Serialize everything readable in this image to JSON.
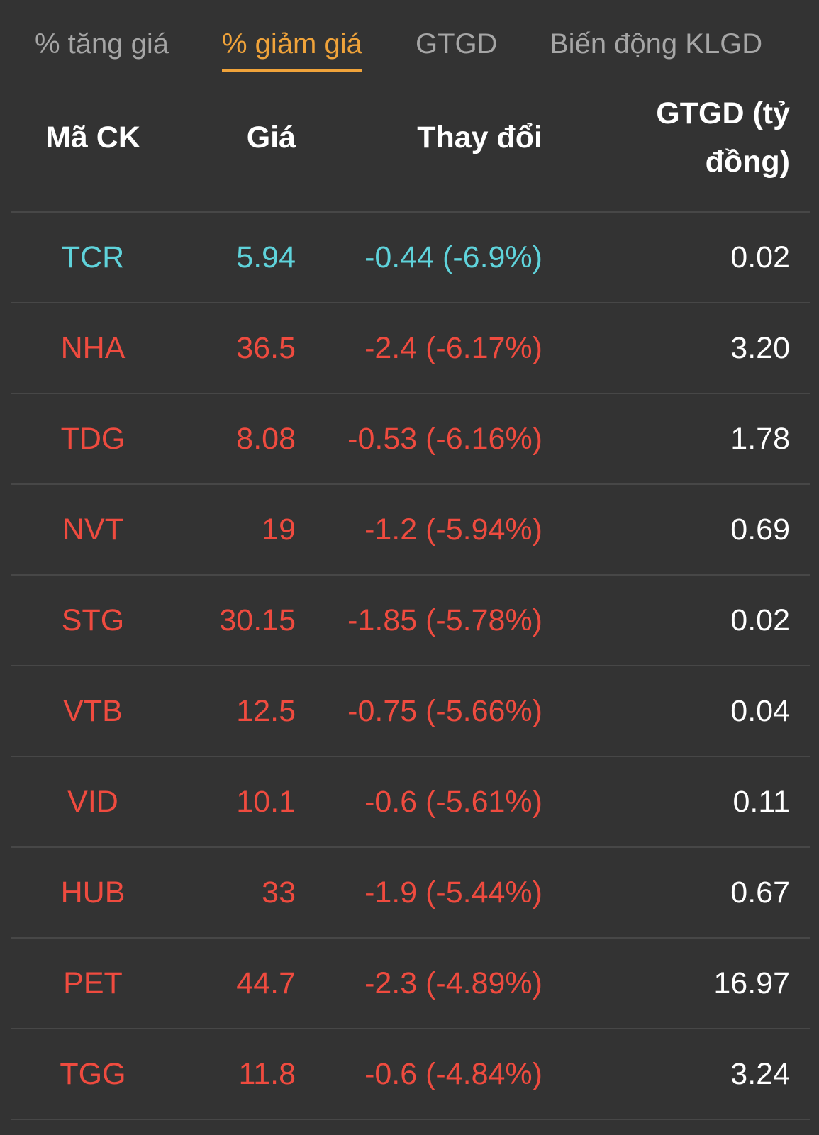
{
  "tabs": [
    {
      "label": "% tăng giá",
      "active": false
    },
    {
      "label": "% giảm giá",
      "active": true
    },
    {
      "label": "GTGD",
      "active": false
    },
    {
      "label": "Biến động KLGD",
      "active": false
    }
  ],
  "table": {
    "headers": {
      "symbol": "Mã CK",
      "price": "Giá",
      "change": "Thay đổi",
      "value_line1": "GTGD (tỷ",
      "value_line2": "đồng)"
    },
    "rows": [
      {
        "symbol": "TCR",
        "price": "5.94",
        "change": "-0.44 (-6.9%)",
        "value": "0.02",
        "status": "floor"
      },
      {
        "symbol": "NHA",
        "price": "36.5",
        "change": "-2.4 (-6.17%)",
        "value": "3.20",
        "status": "down"
      },
      {
        "symbol": "TDG",
        "price": "8.08",
        "change": "-0.53 (-6.16%)",
        "value": "1.78",
        "status": "down"
      },
      {
        "symbol": "NVT",
        "price": "19",
        "change": "-1.2 (-5.94%)",
        "value": "0.69",
        "status": "down"
      },
      {
        "symbol": "STG",
        "price": "30.15",
        "change": "-1.85 (-5.78%)",
        "value": "0.02",
        "status": "down"
      },
      {
        "symbol": "VTB",
        "price": "12.5",
        "change": "-0.75 (-5.66%)",
        "value": "0.04",
        "status": "down"
      },
      {
        "symbol": "VID",
        "price": "10.1",
        "change": "-0.6 (-5.61%)",
        "value": "0.11",
        "status": "down"
      },
      {
        "symbol": "HUB",
        "price": "33",
        "change": "-1.9 (-5.44%)",
        "value": "0.67",
        "status": "down"
      },
      {
        "symbol": "PET",
        "price": "44.7",
        "change": "-2.3 (-4.89%)",
        "value": "16.97",
        "status": "down"
      },
      {
        "symbol": "TGG",
        "price": "11.8",
        "change": "-0.6 (-4.84%)",
        "value": "3.24",
        "status": "down"
      }
    ]
  },
  "colors": {
    "background": "#333333",
    "accent": "#f0a33a",
    "tab_inactive": "#a6a6a6",
    "down": "#ef4b3f",
    "floor": "#5fd3db",
    "divider": "#474747"
  }
}
